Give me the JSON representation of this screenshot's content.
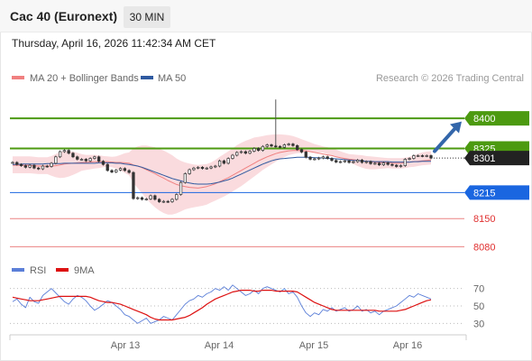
{
  "header": {
    "title": "Cac 40 (Euronext)",
    "interval": "30 MIN",
    "datetime": "Thursday, April 16, 2026 11:42:34 AM CET"
  },
  "colors": {
    "ma20": "#f08080",
    "bollinger": "#f9d5d8",
    "ma50": "#2f5aa0",
    "resistance": "#4c9a10",
    "pivot": "#1a66e0",
    "support": "#e03030",
    "rsi": "#5b7fd8",
    "rsi_ma": "#dd1111",
    "candle": "#333333",
    "arrow": "#3366aa"
  },
  "chart_data": [
    {
      "type": "candlestick",
      "legend": [
        {
          "label": "MA 20 + Bollinger Bands",
          "color": "#f08080"
        },
        {
          "label": "MA 50",
          "color": "#2f5aa0"
        }
      ],
      "legend_position": "top-left",
      "copyright": "Research © 2026 Trading Central",
      "x_tick_labels": [
        "Apr 13",
        "Apr 14",
        "Apr 15",
        "Apr 16"
      ],
      "ylim": [
        8065,
        8470
      ],
      "price_labels": [
        {
          "label": "8400",
          "value": 8400,
          "kind": "resistance"
        },
        {
          "label": "8325",
          "value": 8325,
          "kind": "resistance"
        },
        {
          "label": "8301",
          "value": 8301,
          "kind": "last"
        },
        {
          "label": "8215",
          "value": 8215,
          "kind": "pivot"
        },
        {
          "label": "8150",
          "value": 8150,
          "kind": "support"
        },
        {
          "label": "8080",
          "value": 8080,
          "kind": "support"
        }
      ],
      "close": [
        8290,
        8285,
        8282,
        8278,
        8283,
        8276,
        8274,
        8281,
        8280,
        8288,
        8304,
        8317,
        8320,
        8313,
        8304,
        8298,
        8298,
        8294,
        8300,
        8304,
        8293,
        8285,
        8270,
        8266,
        8271,
        8275,
        8270,
        8265,
        8200,
        8202,
        8198,
        8199,
        8207,
        8198,
        8192,
        8193,
        8192,
        8198,
        8210,
        8240,
        8262,
        8272,
        8276,
        8278,
        8275,
        8276,
        8279,
        8281,
        8294,
        8288,
        8300,
        8308,
        8315,
        8317,
        8313,
        8318,
        8325,
        8320,
        8330,
        8334,
        8331,
        8330,
        8328,
        8334,
        8336,
        8332,
        8322,
        8316,
        8303,
        8298,
        8299,
        8301,
        8304,
        8300,
        8295,
        8291,
        8292,
        8294,
        8290,
        8292,
        8296,
        8290,
        8292,
        8287,
        8288,
        8284,
        8289,
        8285,
        8283,
        8280,
        8282,
        8298,
        8300,
        8307,
        8307,
        8306,
        8307,
        8301
      ],
      "ma20": [
        8283,
        8283,
        8283,
        8283,
        8283,
        8282,
        8281,
        8281,
        8281,
        8281,
        8282,
        8284,
        8286,
        8287,
        8288,
        8289,
        8290,
        8290,
        8291,
        8292,
        8292,
        8292,
        8292,
        8291,
        8290,
        8290,
        8289,
        8288,
        8284,
        8281,
        8277,
        8272,
        8267,
        8262,
        8256,
        8251,
        8245,
        8240,
        8235,
        8232,
        8230,
        8228,
        8227,
        8226,
        8228,
        8230,
        8233,
        8237,
        8242,
        8247,
        8252,
        8258,
        8264,
        8270,
        8276,
        8282,
        8288,
        8294,
        8299,
        8304,
        8308,
        8312,
        8315,
        8317,
        8319,
        8320,
        8320,
        8320,
        8319,
        8317,
        8315,
        8313,
        8311,
        8309,
        8307,
        8304,
        8302,
        8300,
        8298,
        8297,
        8295,
        8294,
        8293,
        8292,
        8291,
        8290,
        8290,
        8289,
        8288,
        8288,
        8288,
        8289,
        8291,
        8292,
        8293,
        8294,
        8295,
        8296
      ],
      "upper_band": [
        8305,
        8305,
        8305,
        8305,
        8305,
        8304,
        8303,
        8303,
        8303,
        8306,
        8311,
        8316,
        8319,
        8319,
        8317,
        8314,
        8311,
        8309,
        8309,
        8309,
        8308,
        8306,
        8305,
        8304,
        8305,
        8309,
        8313,
        8315,
        8325,
        8330,
        8332,
        8332,
        8330,
        8328,
        8324,
        8320,
        8314,
        8308,
        8300,
        8294,
        8290,
        8287,
        8285,
        8284,
        8285,
        8286,
        8290,
        8296,
        8304,
        8311,
        8318,
        8325,
        8333,
        8339,
        8344,
        8348,
        8352,
        8354,
        8356,
        8358,
        8359,
        8360,
        8360,
        8359,
        8358,
        8356,
        8352,
        8348,
        8344,
        8340,
        8336,
        8333,
        8330,
        8328,
        8325,
        8322,
        8318,
        8314,
        8311,
        8310,
        8309,
        8308,
        8306,
        8305,
        8304,
        8303,
        8302,
        8301,
        8301,
        8301,
        8301,
        8302,
        8304,
        8308,
        8312,
        8315,
        8317,
        8318
      ],
      "lower_band": [
        8263,
        8263,
        8263,
        8263,
        8263,
        8262,
        8261,
        8261,
        8261,
        8257,
        8253,
        8251,
        8252,
        8255,
        8259,
        8264,
        8269,
        8271,
        8273,
        8275,
        8276,
        8278,
        8279,
        8278,
        8275,
        8270,
        8264,
        8258,
        8239,
        8226,
        8213,
        8200,
        8188,
        8178,
        8170,
        8164,
        8160,
        8160,
        8163,
        8168,
        8173,
        8176,
        8178,
        8180,
        8182,
        8185,
        8190,
        8195,
        8200,
        8205,
        8211,
        8218,
        8224,
        8231,
        8239,
        8247,
        8255,
        8263,
        8271,
        8278,
        8285,
        8292,
        8298,
        8303,
        8308,
        8311,
        8313,
        8314,
        8316,
        8316,
        8316,
        8315,
        8314,
        8311,
        8308,
        8304,
        8301,
        8297,
        8291,
        8286,
        8281,
        8277,
        8274,
        8273,
        8273,
        8274,
        8275,
        8276,
        8275,
        8275,
        8275,
        8276,
        8278,
        8279,
        8281,
        8283,
        8284,
        8285
      ],
      "ma50": [
        8285,
        8285,
        8286,
        8286,
        8286,
        8286,
        8286,
        8286,
        8287,
        8287,
        8287,
        8287,
        8288,
        8288,
        8288,
        8288,
        8288,
        8288,
        8288,
        8288,
        8289,
        8289,
        8289,
        8289,
        8288,
        8288,
        8286,
        8285,
        8283,
        8281,
        8278,
        8274,
        8270,
        8266,
        8262,
        8258,
        8254,
        8250,
        8247,
        8244,
        8241,
        8239,
        8237,
        8236,
        8236,
        8236,
        8237,
        8239,
        8241,
        8244,
        8247,
        8251,
        8256,
        8261,
        8266,
        8271,
        8276,
        8281,
        8286,
        8290,
        8294,
        8297,
        8299,
        8300,
        8301,
        8302,
        8303,
        8303,
        8303,
        8303,
        8302,
        8302,
        8301,
        8300,
        8300,
        8299,
        8298,
        8297,
        8296,
        8295,
        8295,
        8294,
        8293,
        8293,
        8292,
        8292,
        8292,
        8292,
        8291,
        8291,
        8291,
        8291,
        8291,
        8292,
        8292,
        8293,
        8293,
        8293
      ],
      "spike": {
        "value": 8447,
        "index": 61
      }
    },
    {
      "type": "line",
      "legend": [
        {
          "label": "RSI",
          "color": "#5b7fd8"
        },
        {
          "label": "9MA",
          "color": "#dd1111"
        }
      ],
      "legend_position": "top-left",
      "y_tick_labels": [
        "70",
        "50",
        "30"
      ],
      "ylim": [
        20,
        80
      ],
      "series": [
        {
          "name": "RSI",
          "values": [
            55,
            58,
            52,
            48,
            60,
            55,
            53,
            62,
            66,
            70,
            65,
            60,
            55,
            52,
            58,
            62,
            60,
            56,
            50,
            45,
            48,
            52,
            56,
            54,
            50,
            46,
            40,
            38,
            34,
            30,
            33,
            36,
            30,
            32,
            34,
            38,
            36,
            34,
            40,
            46,
            52,
            56,
            58,
            62,
            60,
            64,
            66,
            70,
            68,
            72,
            68,
            74,
            70,
            66,
            62,
            64,
            68,
            64,
            70,
            72,
            70,
            68,
            66,
            70,
            64,
            66,
            60,
            50,
            42,
            38,
            42,
            40,
            46,
            44,
            48,
            44,
            46,
            48,
            44,
            46,
            50,
            44,
            46,
            42,
            44,
            40,
            44,
            46,
            48,
            50,
            54,
            58,
            62,
            60,
            64,
            62,
            60,
            58
          ]
        },
        {
          "name": "9MA",
          "values": [
            60,
            59,
            58,
            57,
            56,
            56,
            56,
            57,
            58,
            59,
            60,
            61,
            61,
            61,
            61,
            61,
            61,
            61,
            60,
            58,
            56,
            55,
            54,
            54,
            53,
            52,
            50,
            48,
            46,
            44,
            42,
            40,
            37,
            35,
            34,
            34,
            34,
            34,
            35,
            36,
            37,
            39,
            42,
            45,
            48,
            52,
            55,
            58,
            60,
            62,
            64,
            66,
            67,
            68,
            68,
            68,
            67,
            67,
            68,
            68,
            68,
            67,
            67,
            67,
            67,
            67,
            66,
            63,
            60,
            57,
            54,
            52,
            50,
            48,
            46,
            45,
            45,
            45,
            45,
            45,
            45,
            45,
            45,
            45,
            45,
            44,
            44,
            44,
            44,
            44,
            45,
            46,
            48,
            50,
            52,
            54,
            56,
            57
          ]
        }
      ]
    }
  ]
}
